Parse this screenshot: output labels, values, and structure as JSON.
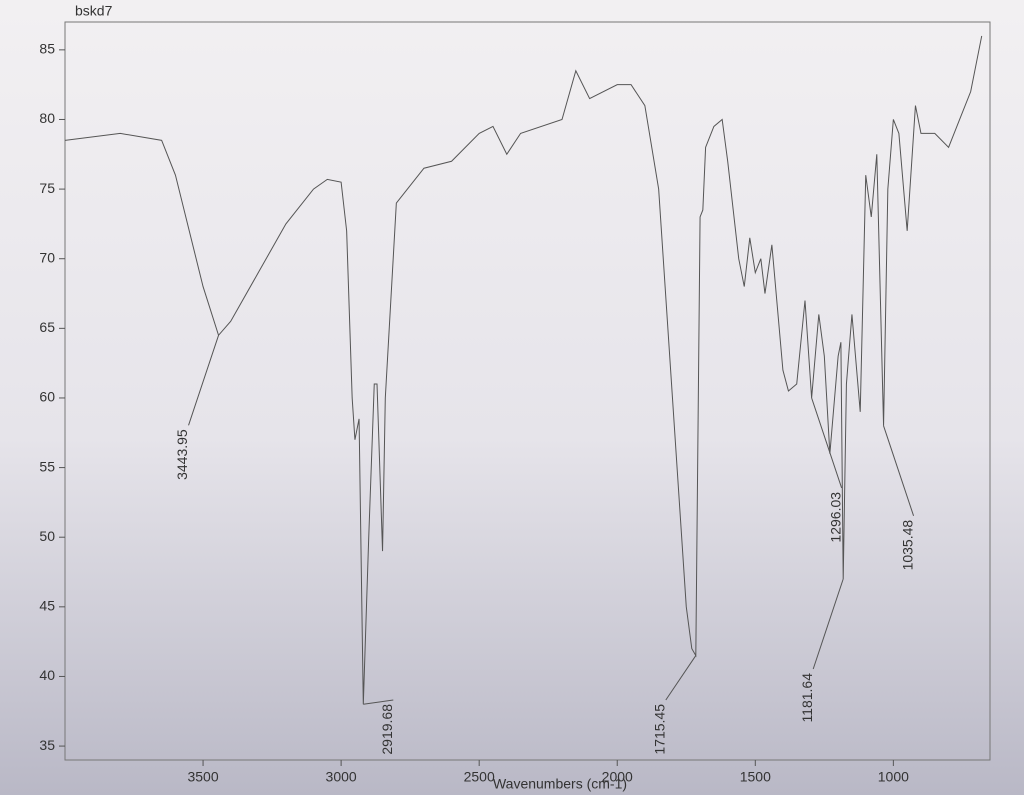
{
  "chart_data": {
    "type": "line",
    "title": "bskd7",
    "x_label": "Wavenumbers (cm-1)",
    "x": [
      4000,
      3800,
      3650,
      3600,
      3550,
      3500,
      3443.95,
      3400,
      3300,
      3200,
      3100,
      3050,
      3000,
      2980,
      2960,
      2950,
      2935,
      2919.68,
      2900,
      2880,
      2870,
      2850,
      2840,
      2800,
      2700,
      2600,
      2500,
      2450,
      2400,
      2350,
      2200,
      2150,
      2100,
      2000,
      1950,
      1900,
      1850,
      1800,
      1750,
      1730,
      1715.45,
      1700,
      1690,
      1680,
      1650,
      1620,
      1600,
      1560,
      1540,
      1520,
      1500,
      1480,
      1465,
      1440,
      1400,
      1380,
      1350,
      1320,
      1296.03,
      1270,
      1250,
      1230,
      1200,
      1190,
      1181.64,
      1170,
      1150,
      1120,
      1100,
      1080,
      1060,
      1035.48,
      1020,
      1000,
      980,
      950,
      920,
      900,
      850,
      800,
      760,
      720,
      680
    ],
    "series": [
      {
        "color": "#555555",
        "values": [
          78.5,
          79,
          78.5,
          76,
          72,
          68,
          64.5,
          65.5,
          69,
          72.5,
          75,
          75.7,
          75.5,
          72,
          60,
          57,
          58.5,
          38,
          50,
          61,
          61,
          49,
          60,
          74,
          76.5,
          77,
          79,
          79.5,
          77.5,
          79,
          80,
          83.5,
          81.5,
          82.5,
          82.5,
          81,
          75,
          60,
          45,
          42,
          41.5,
          73,
          73.5,
          78,
          79.5,
          80,
          77,
          70,
          68,
          71.5,
          69,
          70,
          67.5,
          71,
          62,
          60.5,
          61,
          67,
          60,
          66,
          63,
          56,
          63,
          64,
          47,
          61,
          66,
          59,
          76,
          73,
          77.5,
          58,
          75,
          80,
          79,
          72,
          81,
          79,
          79,
          78,
          80,
          82,
          86
        ]
      }
    ],
    "peaks": [
      3443.95,
      2919.68,
      1715.45,
      1296.03,
      1181.64,
      1035.48
    ],
    "xlim": [
      4000,
      650
    ],
    "ylim": [
      34,
      87
    ],
    "xticks": [
      3500,
      3000,
      2500,
      2000,
      1500,
      1000
    ],
    "yticks": [
      35,
      40,
      45,
      50,
      55,
      60,
      65,
      70,
      75,
      80,
      85
    ]
  }
}
